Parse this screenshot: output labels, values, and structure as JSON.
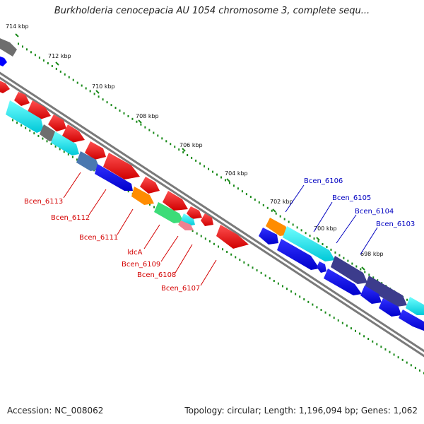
{
  "title": "Burkholderia cenocepacia AU 1054 chromosome 3, complete sequ...",
  "footer": {
    "accession": "Accession: NC_008062",
    "summary": "Topology: circular; Length: 1,196,094 bp; Genes: 1,062"
  },
  "ticks": [
    "714 kbp",
    "712 kbp",
    "710 kbp",
    "708 kbp",
    "706 kbp",
    "704 kbp",
    "702 kbp",
    "700 kbp",
    "698 kbp"
  ],
  "gene_labels_left": [
    "Bcen_6113",
    "Bcen_6112",
    "Bcen_6111",
    "ldcA",
    "Bcen_6109",
    "Bcen_6108",
    "Bcen_6107"
  ],
  "gene_labels_right": [
    "Bcen_6106",
    "Bcen_6105",
    "Bcen_6104",
    "Bcen_6103"
  ],
  "colors": {
    "cds_red": "#ff0000",
    "cds_blue": "#0000ff",
    "cds_cyan": "#00e5ee",
    "cds_gray": "#6e6e6e",
    "cds_orange": "#ff8c00",
    "cds_green": "#3cdc78",
    "cds_navy": "#3c3c8c",
    "backbone": "#7a7a7a",
    "tick_green": "#1a8a1a",
    "label_red": "#d40000",
    "label_blue": "#0000c0"
  }
}
